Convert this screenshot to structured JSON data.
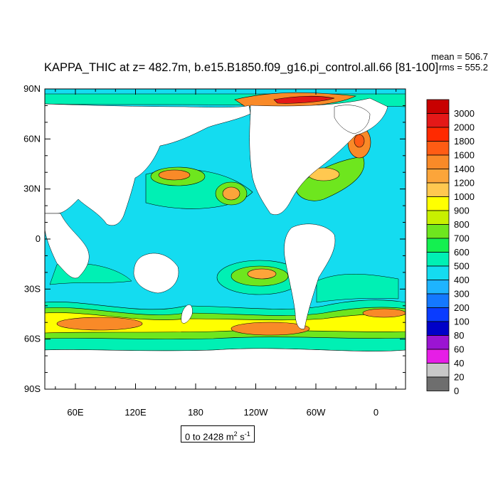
{
  "title": "KAPPA_THIC at z= 482.7m, b.e15.B1850.f09_g16.pi_control.all.66 [81-100]",
  "stats": {
    "mean": "mean = 506.7",
    "rms": "rms = 555.2"
  },
  "axes": {
    "y_ticks": [
      "90N",
      "60N",
      "30N",
      "0",
      "30S",
      "60S",
      "90S"
    ],
    "x_ticks": [
      "60E",
      "120E",
      "180",
      "120W",
      "60W",
      "0"
    ]
  },
  "colorbar": {
    "levels": [
      "3000",
      "2000",
      "1800",
      "1600",
      "1400",
      "1200",
      "1000",
      "900",
      "800",
      "700",
      "600",
      "500",
      "400",
      "300",
      "200",
      "100",
      "80",
      "60",
      "40",
      "20",
      "0"
    ],
    "colors": [
      "#c80000",
      "#e41818",
      "#ff2a00",
      "#ff5c14",
      "#f98a28",
      "#fca53a",
      "#ffc850",
      "#ffff00",
      "#c8f000",
      "#6ee61e",
      "#14f050",
      "#00f0b4",
      "#14dcf0",
      "#1eb4ff",
      "#1478ff",
      "#0a3cff",
      "#0000c8",
      "#9b14d2",
      "#e61ee6",
      "#c8c8c8",
      "#6e6e6e"
    ]
  },
  "range_label": {
    "text": "0 to 2428 m",
    "exp1": "2",
    "mid": " s",
    "exp2": "-1"
  },
  "colors": {
    "land": "#ffffff",
    "ocean_base": "#14dcf0"
  }
}
